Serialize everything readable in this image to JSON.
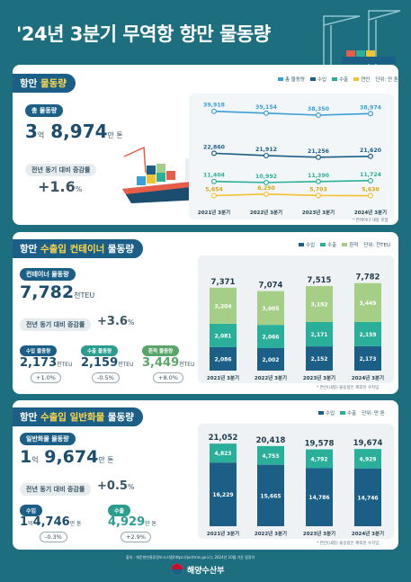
{
  "title": "'24년 3분기 무역항 항만 물동량",
  "section1": {
    "header_prefix": "항만",
    "header_highlight": "물동량",
    "legend": [
      "총 물동량",
      "수입",
      "수출",
      "연안"
    ],
    "unit": "단위: 만 톤",
    "total_label": "총 물동량",
    "total_value_a": "3",
    "total_unit_a": "억",
    "total_value_b": "8,974",
    "total_unit_b": "만 톤",
    "yoy_label": "전년 동기 대비 증감률",
    "yoy_value": "+1.6",
    "yoy_unit": "%",
    "note": "* 컨테이너 내용 포함",
    "colors": {
      "total": "#3a9fd6",
      "import": "#1b5f86",
      "export": "#2ab09a",
      "coastal": "#f2c230"
    }
  },
  "section2": {
    "header_prefix": "항만",
    "header_highlight": "수출입 컨테이너",
    "header_suffix": "물동량",
    "legend": [
      "수입",
      "수출",
      "환적"
    ],
    "unit": "단위: 천TEU",
    "total_label": "컨테이너 물동량",
    "total_value": "7,782",
    "total_unit": "천TEU",
    "yoy_label": "전년 동기 대비 증감률",
    "yoy_value": "+3.6",
    "yoy_unit": "%",
    "sub": [
      {
        "label": "수입 물동량",
        "value": "2,173",
        "unit": "천TEU",
        "chg": "+1.0%"
      },
      {
        "label": "수출 물동량",
        "value": "2,159",
        "unit": "천TEU",
        "chg": "-0.5%"
      },
      {
        "label": "환적 물동량",
        "value": "3,449",
        "unit": "천TEU",
        "chg": "+8.0%"
      }
    ],
    "note": "* 연안(내항) 물동량은 제외된 수치임",
    "colors": {
      "import": "#1b5f86",
      "export": "#2ab09a",
      "transship": "#a5cf86"
    }
  },
  "section3": {
    "header_prefix": "항만",
    "header_highlight": "수출입 일반화물",
    "header_suffix": "물동량",
    "legend": [
      "수입",
      "수출"
    ],
    "unit": "단위: 만 톤",
    "total_label": "일반화물 물동량",
    "total_value_a": "1",
    "total_unit_a": "억",
    "total_value_b": "9,674",
    "total_unit_b": "만 톤",
    "yoy_label": "전년 동기 대비 증감률",
    "yoy_value": "+0.5",
    "yoy_unit": "%",
    "import_label": "수입",
    "import_value_a": "1",
    "import_unit_a": "억",
    "import_value_b": "4,746",
    "import_unit_b": "만 톤",
    "import_chg": "-0.3%",
    "export_label": "수출",
    "export_value": "4,929",
    "export_unit": "만 톤",
    "export_chg": "+2.9%",
    "note": "* 연안(내항) 물동량은 제외된 수치임",
    "colors": {
      "import": "#1b5f86",
      "export": "#2ab09a"
    }
  },
  "footer": {
    "source": "출처 : 해운항만물류정보시스템(https://portmis.go.kr), 2024년 10월 기준 잠정치",
    "org": "해양수산부"
  },
  "chart_data": [
    {
      "type": "line",
      "categories": [
        "2021년 3분기",
        "2022년 3분기",
        "2023년 3분기",
        "2024년 3분기"
      ],
      "series": [
        {
          "name": "총 물동량",
          "values": [
            39918,
            39154,
            38350,
            38974
          ]
        },
        {
          "name": "수입",
          "values": [
            22860,
            21912,
            21256,
            21620
          ]
        },
        {
          "name": "수출",
          "values": [
            11404,
            10992,
            11390,
            11724
          ]
        },
        {
          "name": "연안",
          "values": [
            5654,
            6250,
            5703,
            5630
          ]
        }
      ],
      "labels": [
        [
          "39,918",
          "39,154",
          "38,350",
          "38,974"
        ],
        [
          "22,860",
          "21,912",
          "21,256",
          "21,620"
        ],
        [
          "11,404",
          "10,992",
          "11,390",
          "11,724"
        ],
        [
          "5,654",
          "6,250",
          "5,703",
          "5,630"
        ]
      ]
    },
    {
      "type": "bar",
      "stacked": true,
      "categories": [
        "2021년 3분기",
        "2022년 3분기",
        "2023년 3분기",
        "2024년 3분기"
      ],
      "totals": [
        "7,371",
        "7,074",
        "7,515",
        "7,782"
      ],
      "series": [
        {
          "name": "수입",
          "values": [
            2086,
            2002,
            2152,
            2173
          ],
          "labels": [
            "2,086",
            "2,002",
            "2,152",
            "2,173"
          ]
        },
        {
          "name": "수출",
          "values": [
            2081,
            2066,
            2171,
            2159
          ],
          "labels": [
            "2,081",
            "2,066",
            "2,171",
            "2,159"
          ]
        },
        {
          "name": "환적",
          "values": [
            3204,
            3005,
            3192,
            3449
          ],
          "labels": [
            "3,204",
            "3,005",
            "3,192",
            "3,449"
          ]
        }
      ]
    },
    {
      "type": "bar",
      "stacked": true,
      "categories": [
        "2021년 3분기",
        "2022년 3분기",
        "2023년 3분기",
        "2024년 3분기"
      ],
      "totals": [
        "21,052",
        "20,418",
        "19,578",
        "19,674"
      ],
      "series": [
        {
          "name": "수입",
          "values": [
            16229,
            15665,
            14786,
            14746
          ],
          "labels": [
            "16,229",
            "15,665",
            "14,786",
            "14,746"
          ]
        },
        {
          "name": "수출",
          "values": [
            4823,
            4753,
            4792,
            4929
          ],
          "labels": [
            "4,823",
            "4,753",
            "4,792",
            "4,929"
          ]
        }
      ]
    }
  ]
}
